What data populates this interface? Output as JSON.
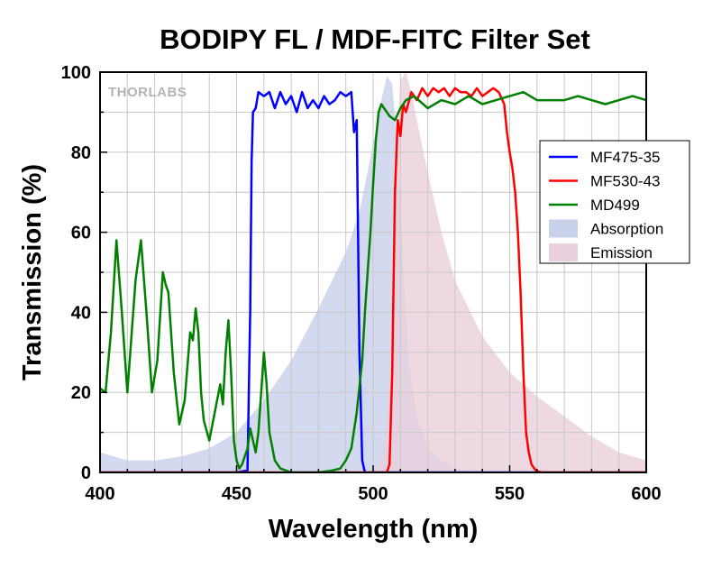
{
  "chart_data": {
    "type": "line",
    "title": "BODIPY FL / MDF-FITC Filter Set",
    "xlabel": "Wavelength (nm)",
    "ylabel": "Transmission (%)",
    "xlim": [
      400,
      600
    ],
    "ylim": [
      0,
      100
    ],
    "xticks": [
      400,
      450,
      500,
      550,
      600
    ],
    "yticks": [
      0,
      20,
      40,
      60,
      80,
      100
    ],
    "grid": true,
    "legend_position": "right",
    "logo": "THORLABS",
    "series": [
      {
        "name": "MF475-35",
        "kind": "line",
        "color": "#0000ff",
        "x": [
          400,
          450,
          454,
          455,
          455.5,
          456,
          457,
          458,
          460,
          462,
          464,
          466,
          468,
          470,
          472,
          474,
          476,
          478,
          480,
          482,
          484,
          486,
          488,
          490,
          492,
          493,
          494,
          495,
          496,
          497,
          500,
          600
        ],
        "y": [
          0,
          0,
          0.5,
          40,
          78,
          90,
          91,
          95,
          94,
          95,
          91,
          95,
          92,
          94,
          90,
          95,
          91,
          93,
          91,
          94,
          92,
          93,
          95,
          94,
          95,
          85,
          88,
          30,
          3,
          0,
          0,
          0
        ]
      },
      {
        "name": "MF530-43",
        "kind": "line",
        "color": "#ff0000",
        "x": [
          400,
          505,
          506,
          507,
          508,
          509,
          510,
          511,
          512,
          514,
          516,
          518,
          520,
          522,
          524,
          526,
          528,
          530,
          532,
          534,
          536,
          538,
          540,
          542,
          544,
          546,
          548,
          549,
          550,
          551,
          552,
          553,
          554,
          555,
          556,
          557,
          558,
          559,
          560,
          562,
          600
        ],
        "y": [
          0,
          0,
          2,
          25,
          70,
          88,
          84,
          92,
          90,
          95,
          93,
          96,
          94,
          96,
          95,
          96,
          94,
          96,
          95,
          95,
          94,
          96,
          94,
          95,
          96,
          95,
          92,
          85,
          80,
          76,
          70,
          60,
          45,
          25,
          10,
          5,
          2,
          1,
          0.3,
          0,
          0
        ]
      },
      {
        "name": "MD499",
        "kind": "line",
        "color": "#008000",
        "x": [
          400,
          402,
          404,
          406,
          408,
          410,
          413,
          415,
          417,
          419,
          421,
          423,
          424,
          425,
          427,
          429,
          431,
          433,
          434,
          435,
          436,
          437,
          438,
          440,
          442,
          444,
          445,
          446,
          447,
          448,
          449,
          450,
          451,
          452,
          454,
          455,
          456,
          457,
          458,
          459,
          460,
          461,
          462,
          464,
          466,
          470,
          480,
          485,
          488,
          490,
          492,
          494,
          496,
          497,
          498,
          499,
          500,
          501,
          502,
          503,
          504,
          505,
          506,
          508,
          510,
          512,
          515,
          520,
          525,
          530,
          535,
          540,
          545,
          550,
          555,
          560,
          565,
          570,
          575,
          580,
          585,
          590,
          595,
          600
        ],
        "y": [
          21,
          20,
          35,
          58,
          40,
          20,
          48,
          58,
          40,
          20,
          28,
          50,
          47,
          45,
          25,
          12,
          18,
          35,
          33,
          41,
          35,
          20,
          13,
          8,
          15,
          22,
          17,
          30,
          38,
          25,
          8,
          3,
          1,
          2,
          6,
          11,
          8,
          5,
          10,
          20,
          30,
          22,
          10,
          3,
          1,
          0,
          0,
          0.5,
          1,
          3,
          6,
          15,
          28,
          40,
          50,
          60,
          72,
          83,
          90,
          92,
          91,
          90,
          89,
          88,
          91,
          93,
          94,
          91,
          93,
          92,
          94,
          92,
          93,
          94,
          95,
          93,
          93,
          93,
          94,
          93,
          92,
          93,
          94,
          93
        ]
      },
      {
        "name": "Absorption",
        "kind": "area",
        "color": "#c8d0ea",
        "x": [
          400,
          410,
          420,
          430,
          440,
          450,
          460,
          470,
          480,
          490,
          495,
          500,
          503,
          505,
          507,
          509,
          511,
          513,
          516,
          520,
          525,
          530,
          540,
          600
        ],
        "y": [
          5,
          3,
          3,
          4,
          6,
          10,
          18,
          28,
          41,
          55,
          65,
          82,
          93,
          99,
          97,
          80,
          52,
          28,
          14,
          6,
          3,
          1,
          0,
          0
        ]
      },
      {
        "name": "Emission",
        "kind": "area",
        "color": "#ead0dc",
        "x": [
          400,
          500,
          504,
          506,
          508,
          510,
          512,
          514,
          516,
          520,
          525,
          530,
          540,
          550,
          560,
          570,
          580,
          590,
          600
        ],
        "y": [
          0,
          0,
          5,
          25,
          70,
          98,
          100,
          95,
          88,
          75,
          60,
          48,
          34,
          25,
          19,
          14,
          9,
          5,
          3
        ]
      }
    ]
  }
}
